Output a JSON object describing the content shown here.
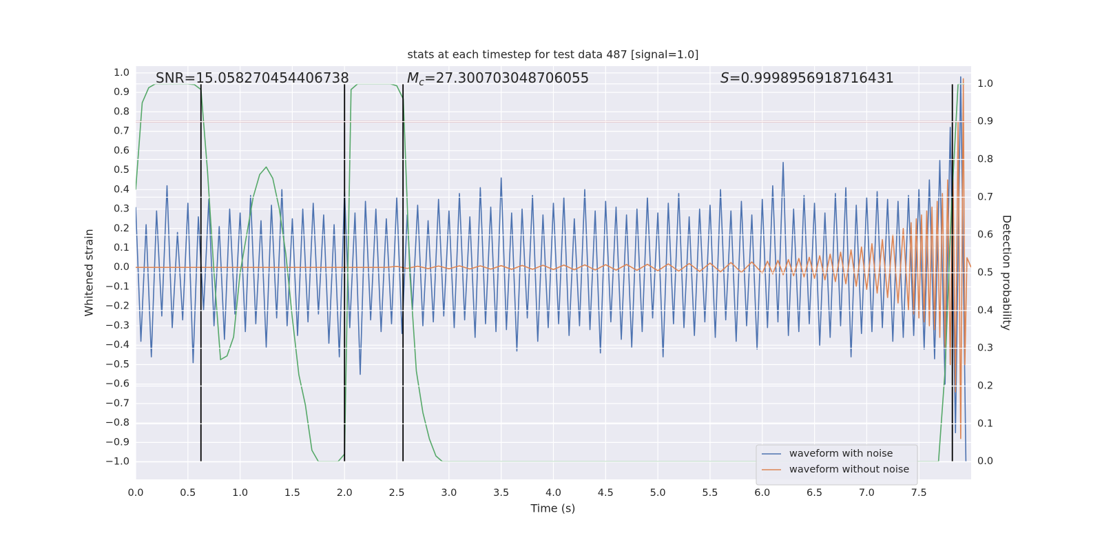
{
  "chart_data": {
    "type": "line",
    "title": "stats at each timestep for test data 487 [signal=1.0]",
    "xlabel": "Time (s)",
    "ylabel": "Whitened strain",
    "y2label": "Detection probability",
    "annotations": [
      {
        "text": "SNR=15.058270454406738"
      },
      {
        "symbol": "M",
        "subscript": "c",
        "text": "=27.300703048706055"
      },
      {
        "symbol": "S",
        "text": "=0.9998956918716431"
      }
    ],
    "xlim": [
      0,
      8.0
    ],
    "ylim": [
      -1.09,
      1.035
    ],
    "y2lim": [
      -0.047,
      1.047
    ],
    "xticks": [
      {
        "value": 0,
        "label": "0.0"
      },
      {
        "value": 0.5,
        "label": "0.5"
      },
      {
        "value": 1,
        "label": "1.0"
      },
      {
        "value": 1.5,
        "label": "1.5"
      },
      {
        "value": 2,
        "label": "2.0"
      },
      {
        "value": 2.5,
        "label": "2.5"
      },
      {
        "value": 3,
        "label": "3.0"
      },
      {
        "value": 3.5,
        "label": "3.5"
      },
      {
        "value": 4,
        "label": "4.0"
      },
      {
        "value": 4.5,
        "label": "4.5"
      },
      {
        "value": 5,
        "label": "5.0"
      },
      {
        "value": 5.5,
        "label": "5.5"
      },
      {
        "value": 6,
        "label": "6.0"
      },
      {
        "value": 6.5,
        "label": "6.5"
      },
      {
        "value": 7,
        "label": "7.0"
      },
      {
        "value": 7.5,
        "label": "7.5"
      }
    ],
    "yticks": [
      {
        "value": -1,
        "label": "−1.0"
      },
      {
        "value": -0.9,
        "label": "−0.9"
      },
      {
        "value": -0.8,
        "label": "−0.8"
      },
      {
        "value": -0.7,
        "label": "−0.7"
      },
      {
        "value": -0.6,
        "label": "−0.6"
      },
      {
        "value": -0.5,
        "label": "−0.5"
      },
      {
        "value": -0.4,
        "label": "−0.4"
      },
      {
        "value": -0.3,
        "label": "−0.3"
      },
      {
        "value": -0.2,
        "label": "−0.2"
      },
      {
        "value": -0.1,
        "label": "−0.1"
      },
      {
        "value": 0,
        "label": "0.0"
      },
      {
        "value": 0.1,
        "label": "0.1"
      },
      {
        "value": 0.2,
        "label": "0.2"
      },
      {
        "value": 0.3,
        "label": "0.3"
      },
      {
        "value": 0.4,
        "label": "0.4"
      },
      {
        "value": 0.5,
        "label": "0.5"
      },
      {
        "value": 0.6,
        "label": "0.6"
      },
      {
        "value": 0.7,
        "label": "0.7"
      },
      {
        "value": 0.8,
        "label": "0.8"
      },
      {
        "value": 0.9,
        "label": "0.9"
      },
      {
        "value": 1,
        "label": "1.0"
      }
    ],
    "y2ticks": [
      {
        "value": 0,
        "label": "0.0"
      },
      {
        "value": 0.1,
        "label": "0.1"
      },
      {
        "value": 0.2,
        "label": "0.2"
      },
      {
        "value": 0.3,
        "label": "0.3"
      },
      {
        "value": 0.4,
        "label": "0.4"
      },
      {
        "value": 0.5,
        "label": "0.5"
      },
      {
        "value": 0.6,
        "label": "0.6"
      },
      {
        "value": 0.7,
        "label": "0.7"
      },
      {
        "value": 0.8,
        "label": "0.8"
      },
      {
        "value": 0.9,
        "label": "0.9"
      },
      {
        "value": 1,
        "label": "1.0"
      }
    ],
    "grid": true,
    "legend": "lower right",
    "series": [
      {
        "name": "waveform with noise",
        "color": "#4c72b0",
        "x": [
          0,
          0.05,
          0.1,
          0.15,
          0.2,
          0.25,
          0.3,
          0.35,
          0.4,
          0.45,
          0.5,
          0.55,
          0.6,
          0.65,
          0.7,
          0.75,
          0.8,
          0.85,
          0.9,
          0.95,
          1.0,
          1.05,
          1.1,
          1.15,
          1.2,
          1.25,
          1.3,
          1.35,
          1.4,
          1.45,
          1.5,
          1.55,
          1.6,
          1.65,
          1.7,
          1.75,
          1.8,
          1.85,
          1.9,
          1.95,
          2.0,
          2.05,
          2.1,
          2.15,
          2.2,
          2.25,
          2.3,
          2.35,
          2.4,
          2.45,
          2.5,
          2.55,
          2.6,
          2.65,
          2.7,
          2.75,
          2.8,
          2.85,
          2.9,
          2.95,
          3.0,
          3.05,
          3.1,
          3.15,
          3.2,
          3.25,
          3.3,
          3.35,
          3.4,
          3.45,
          3.5,
          3.55,
          3.6,
          3.65,
          3.7,
          3.75,
          3.8,
          3.85,
          3.9,
          3.95,
          4.0,
          4.05,
          4.1,
          4.15,
          4.2,
          4.25,
          4.3,
          4.35,
          4.4,
          4.45,
          4.5,
          4.55,
          4.6,
          4.65,
          4.7,
          4.75,
          4.8,
          4.85,
          4.9,
          4.95,
          5.0,
          5.05,
          5.1,
          5.15,
          5.2,
          5.25,
          5.3,
          5.35,
          5.4,
          5.45,
          5.5,
          5.55,
          5.6,
          5.65,
          5.7,
          5.75,
          5.8,
          5.85,
          5.9,
          5.95,
          6.0,
          6.05,
          6.1,
          6.15,
          6.2,
          6.25,
          6.3,
          6.35,
          6.4,
          6.45,
          6.5,
          6.55,
          6.6,
          6.65,
          6.7,
          6.75,
          6.8,
          6.85,
          6.9,
          6.95,
          7.0,
          7.05,
          7.1,
          7.15,
          7.2,
          7.25,
          7.3,
          7.35,
          7.4,
          7.45,
          7.5,
          7.55,
          7.6,
          7.65,
          7.7,
          7.75,
          7.8,
          7.85,
          7.9,
          7.95
        ],
        "values": [
          0.31,
          -0.38,
          0.22,
          -0.46,
          0.29,
          -0.25,
          0.42,
          -0.31,
          0.18,
          -0.27,
          0.33,
          -0.49,
          0.26,
          -0.22,
          0.35,
          -0.3,
          0.21,
          -0.37,
          0.3,
          -0.24,
          0.28,
          -0.33,
          0.37,
          -0.29,
          0.24,
          -0.41,
          0.32,
          -0.26,
          0.4,
          -0.3,
          0.25,
          -0.35,
          0.3,
          -0.28,
          0.33,
          -0.24,
          0.27,
          -0.39,
          0.22,
          -0.46,
          0.39,
          -0.31,
          0.28,
          -0.55,
          0.34,
          -0.27,
          0.3,
          -0.33,
          0.25,
          -0.29,
          0.36,
          -0.34,
          0.27,
          -0.22,
          0.32,
          -0.3,
          0.24,
          -0.28,
          0.35,
          -0.25,
          0.29,
          -0.31,
          0.38,
          -0.27,
          0.26,
          -0.36,
          0.41,
          -0.29,
          0.31,
          -0.33,
          0.46,
          -0.32,
          0.28,
          -0.43,
          0.3,
          -0.26,
          0.37,
          -0.38,
          0.27,
          -0.31,
          0.33,
          -0.29,
          0.36,
          -0.35,
          0.25,
          -0.3,
          0.4,
          -0.32,
          0.29,
          -0.44,
          0.34,
          -0.28,
          0.31,
          -0.37,
          0.27,
          -0.41,
          0.3,
          -0.33,
          0.36,
          -0.26,
          0.28,
          -0.46,
          0.33,
          -0.29,
          0.38,
          -0.31,
          0.26,
          -0.35,
          0.3,
          -0.28,
          0.32,
          -0.36,
          0.4,
          -0.27,
          0.29,
          -0.38,
          0.34,
          -0.3,
          0.27,
          -0.42,
          0.35,
          -0.31,
          0.42,
          -0.28,
          0.54,
          -0.35,
          0.3,
          -0.33,
          0.37,
          -0.29,
          0.33,
          -0.4,
          0.28,
          -0.36,
          0.38,
          -0.3,
          0.41,
          -0.46,
          0.32,
          -0.34,
          0.36,
          -0.33,
          0.39,
          -0.31,
          0.35,
          -0.38,
          0.34,
          -0.36,
          0.37,
          -0.35,
          0.4,
          -0.42,
          0.45,
          -0.47,
          0.55,
          -0.6,
          0.72,
          -0.85,
          0.98,
          -1.0
        ]
      },
      {
        "name": "waveform without noise",
        "color": "#dd8452",
        "x": [
          0,
          2.4,
          2.5,
          2.6,
          2.7,
          2.8,
          2.9,
          3.0,
          3.1,
          3.2,
          3.3,
          3.4,
          3.5,
          3.6,
          3.7,
          3.8,
          3.9,
          4.0,
          4.1,
          4.2,
          4.3,
          4.4,
          4.5,
          4.6,
          4.7,
          4.8,
          4.9,
          5.0,
          5.1,
          5.2,
          5.3,
          5.4,
          5.5,
          5.6,
          5.7,
          5.8,
          5.9,
          6.0,
          6.05,
          6.1,
          6.15,
          6.2,
          6.25,
          6.3,
          6.35,
          6.4,
          6.45,
          6.5,
          6.55,
          6.6,
          6.65,
          6.7,
          6.75,
          6.8,
          6.85,
          6.9,
          6.95,
          7.0,
          7.05,
          7.1,
          7.15,
          7.2,
          7.25,
          7.3,
          7.35,
          7.4,
          7.425,
          7.45,
          7.475,
          7.5,
          7.525,
          7.55,
          7.575,
          7.6,
          7.625,
          7.65,
          7.675,
          7.7,
          7.725,
          7.75,
          7.775,
          7.8,
          7.825,
          7.85,
          7.875,
          7.9,
          7.925,
          7.94,
          7.96,
          8.0
        ],
        "values": [
          0,
          0,
          0.005,
          -0.005,
          0.006,
          -0.006,
          0.007,
          -0.007,
          0.008,
          -0.008,
          0.008,
          -0.009,
          0.009,
          -0.01,
          0.01,
          -0.01,
          0.011,
          -0.011,
          0.012,
          -0.012,
          0.013,
          -0.013,
          0.014,
          -0.014,
          0.015,
          -0.015,
          0.016,
          -0.017,
          0.018,
          -0.019,
          0.02,
          -0.021,
          0.022,
          -0.023,
          0.025,
          -0.026,
          0.028,
          -0.03,
          0.032,
          -0.034,
          0.036,
          -0.038,
          0.04,
          -0.043,
          0.046,
          -0.049,
          0.052,
          -0.056,
          0.06,
          -0.064,
          0.068,
          -0.073,
          0.078,
          -0.084,
          0.09,
          -0.097,
          0.105,
          -0.113,
          0.122,
          -0.132,
          0.143,
          -0.155,
          0.168,
          -0.183,
          0.2,
          -0.218,
          0.23,
          -0.24,
          0.25,
          -0.26,
          0.27,
          -0.28,
          0.29,
          -0.3,
          0.31,
          -0.32,
          0.34,
          -0.36,
          0.38,
          -0.41,
          0.45,
          -0.5,
          0.56,
          -0.64,
          0.75,
          -0.88,
          0.97,
          -0.5,
          0.05,
          0
        ]
      },
      {
        "color": "#55a868",
        "axis": "y2",
        "x": [
          0,
          0.0625,
          0.125,
          0.1875,
          0.5,
          0.5625,
          0.625,
          0.6875,
          0.75,
          0.8125,
          0.875,
          0.9375,
          1.0,
          1.0625,
          1.125,
          1.1875,
          1.25,
          1.3125,
          1.375,
          1.4375,
          1.5,
          1.5625,
          1.625,
          1.6875,
          1.75,
          1.9375,
          2.0,
          2.0625,
          2.125,
          2.4375,
          2.5,
          2.5625,
          2.625,
          2.6875,
          2.75,
          2.8125,
          2.875,
          2.9375,
          7.6875,
          7.75,
          7.8125,
          7.875,
          7.9375
        ],
        "values": [
          0.72,
          0.95,
          0.99,
          1.0,
          1.0,
          0.998,
          0.985,
          0.77,
          0.5,
          0.27,
          0.28,
          0.33,
          0.5,
          0.6,
          0.7,
          0.76,
          0.78,
          0.75,
          0.67,
          0.55,
          0.38,
          0.23,
          0.15,
          0.03,
          0.0,
          0.0,
          0.02,
          0.985,
          1.0,
          1.0,
          0.995,
          0.96,
          0.5,
          0.24,
          0.13,
          0.06,
          0.015,
          0.0,
          0.0,
          0.24,
          0.68,
          1.0,
          1.0
        ]
      }
    ],
    "hline": {
      "y": 0.9,
      "axis": "y2",
      "color": "#b8312f"
    },
    "vlines": {
      "x": [
        0.625,
        2.0,
        2.56,
        7.82
      ],
      "ymin": 0,
      "ymax": 1,
      "axis": "y2",
      "color": "#000000"
    }
  }
}
